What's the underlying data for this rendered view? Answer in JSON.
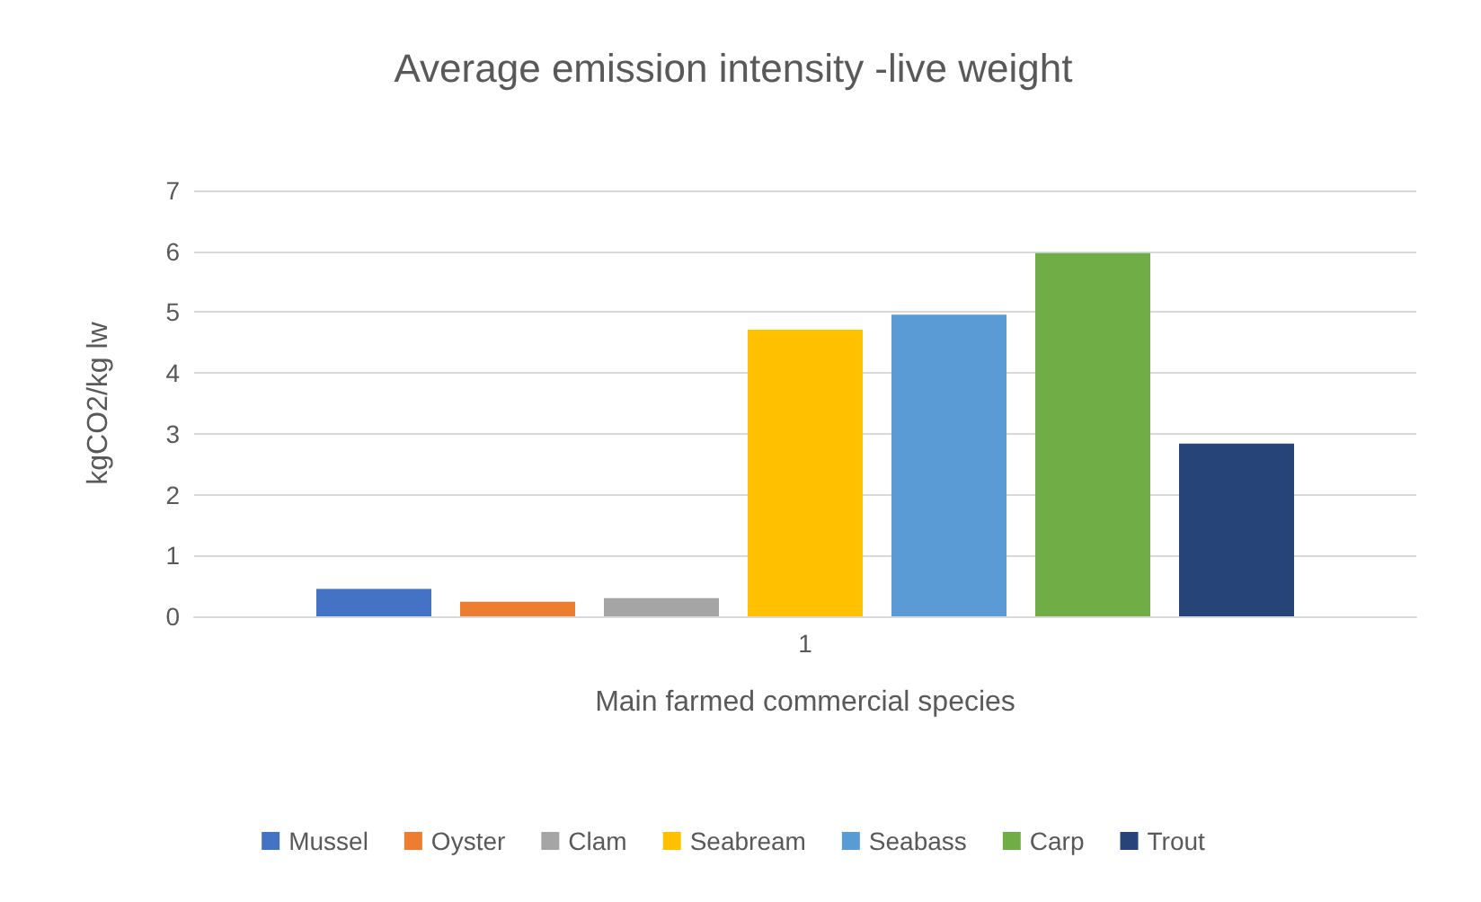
{
  "chart_data": {
    "type": "bar",
    "title": "Average emission intensity -live weight",
    "xlabel": "Main farmed commercial species",
    "ylabel": "kgCO2/kg lw",
    "categories": [
      "1"
    ],
    "series": [
      {
        "name": "Mussel",
        "color": "#4472c4",
        "values": [
          0.45
        ]
      },
      {
        "name": "Oyster",
        "color": "#ed7d31",
        "values": [
          0.24
        ]
      },
      {
        "name": "Clam",
        "color": "#a5a5a5",
        "values": [
          0.3
        ]
      },
      {
        "name": "Seabream",
        "color": "#ffc000",
        "values": [
          4.71
        ]
      },
      {
        "name": "Seabass",
        "color": "#5b9bd5",
        "values": [
          4.96
        ]
      },
      {
        "name": "Carp",
        "color": "#70ad47",
        "values": [
          5.97
        ]
      },
      {
        "name": "Trout",
        "color": "#264478",
        "values": [
          2.84
        ]
      }
    ],
    "ylim": [
      0,
      7
    ],
    "yticks": [
      0,
      1,
      2,
      3,
      4,
      5,
      6,
      7
    ],
    "grid": "y",
    "legend": "bottom"
  }
}
